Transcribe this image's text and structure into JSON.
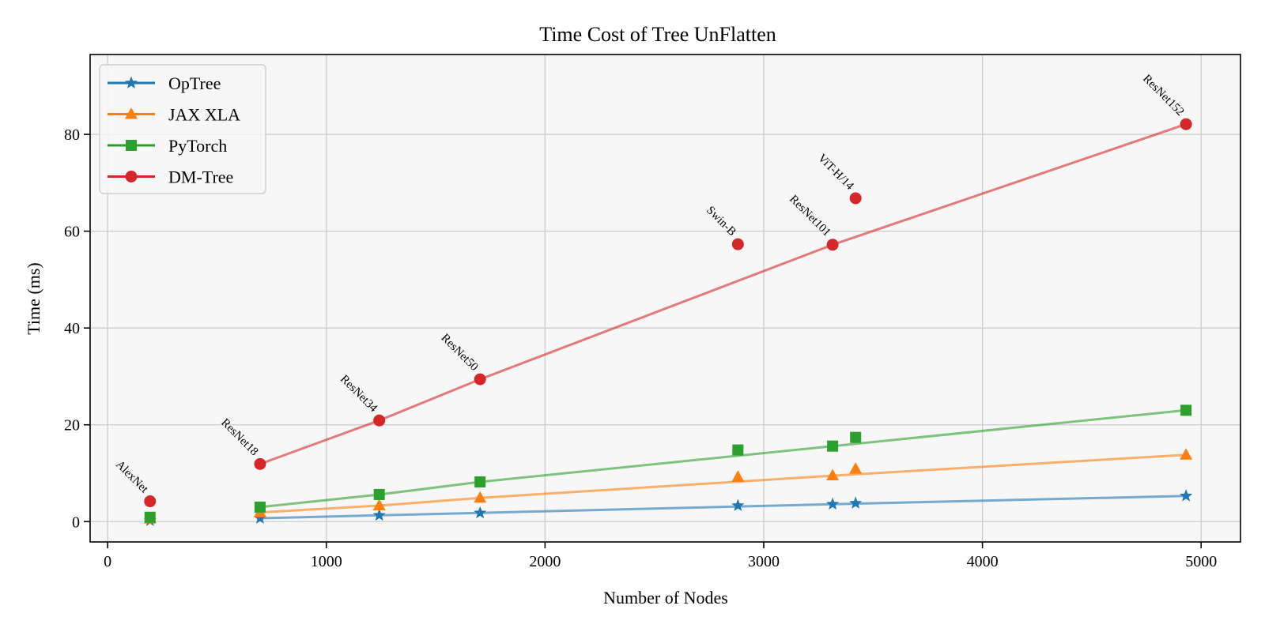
{
  "chart_data": {
    "type": "line",
    "title": "Time Cost of Tree UnFlatten",
    "xlabel": "Number of Nodes",
    "ylabel": "Time (ms)",
    "xlim": [
      -80,
      5180
    ],
    "ylim": [
      -4.2,
      96.5
    ],
    "xticks": [
      0,
      1000,
      2000,
      3000,
      4000,
      5000
    ],
    "xtick_labels": [
      "0",
      "1000",
      "2000",
      "3000",
      "4000",
      "5000"
    ],
    "yticks": [
      0,
      20,
      40,
      60,
      80
    ],
    "ytick_labels": [
      "0",
      "20",
      "40",
      "60",
      "80"
    ],
    "grid": true,
    "legend_position": "top-left",
    "models": [
      "AlexNet",
      "ResNet18",
      "ResNet34",
      "ResNet50",
      "Swin-B",
      "ResNet101",
      "ViT-H/14",
      "ResNet152"
    ],
    "x": [
      194,
      697,
      1242,
      1703,
      2882,
      3315,
      3420,
      4931
    ],
    "line_models": [
      "ResNet18",
      "ResNet34",
      "ResNet50",
      "ResNet101",
      "ResNet152"
    ],
    "annotated_series": "DM-Tree",
    "series": [
      {
        "name": "OpTree",
        "marker": "star",
        "color": "#1f77b4",
        "values": [
          0.2,
          0.7,
          1.3,
          1.8,
          3.3,
          3.6,
          3.8,
          5.3
        ]
      },
      {
        "name": "JAX XLA",
        "marker": "triangle",
        "color": "#ff7f0e",
        "values": [
          0.6,
          1.9,
          3.3,
          4.9,
          9.2,
          9.5,
          10.9,
          13.8
        ]
      },
      {
        "name": "PyTorch",
        "marker": "square",
        "color": "#2ca02c",
        "values": [
          0.9,
          3.0,
          5.6,
          8.2,
          14.8,
          15.6,
          17.4,
          23.0
        ]
      },
      {
        "name": "DM-Tree",
        "marker": "circle",
        "color": "#d62728",
        "values": [
          4.2,
          11.9,
          20.9,
          29.4,
          57.3,
          57.2,
          66.8,
          82.1
        ]
      }
    ]
  },
  "colors": {
    "plot_background": "#f7f7f7",
    "grid": "#cccccc",
    "spine": "#000000"
  }
}
